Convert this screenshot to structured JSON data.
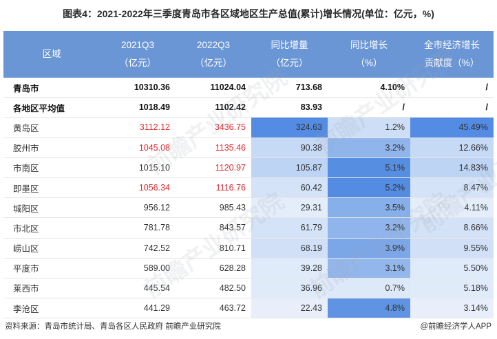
{
  "title": "图表4：2021-2022年三季度青岛市各区域地区生产总值(累计)增长情况(单位：亿元，%)",
  "chart_data": {
    "type": "table",
    "title": "图表4：2021-2022年三季度青岛市各区域地区生产总值(累计)增长情况(单位：亿元，%)",
    "headers": [
      {
        "l1": "区域",
        "l2": ""
      },
      {
        "l1": "2021Q3",
        "l2": "（亿元）"
      },
      {
        "l1": "2022Q3",
        "l2": "（亿元）"
      },
      {
        "l1": "同比增量",
        "l2": "（亿元）"
      },
      {
        "l1": "同比增长",
        "l2": "（%）"
      },
      {
        "l1": "全市经济增长",
        "l2": "贡献度（%）"
      }
    ],
    "rows": [
      {
        "region": "青岛市",
        "v2021": "10310.36",
        "v2022": "11024.04",
        "increase": "713.68",
        "growth": "4.10%",
        "contribution": "/",
        "bold": true
      },
      {
        "region": "各地区平均值",
        "v2021": "1018.49",
        "v2022": "1102.42",
        "increase": "83.93",
        "growth": "/",
        "contribution": "/",
        "bold": true
      },
      {
        "region": "黄岛区",
        "v2021": "3112.12",
        "v2022": "3436.75",
        "increase": "324.63",
        "growth": "1.2%",
        "contribution": "45.49%",
        "red2021": true,
        "red2022": true
      },
      {
        "region": "胶州市",
        "v2021": "1045.08",
        "v2022": "1135.46",
        "increase": "90.38",
        "growth": "3.2%",
        "contribution": "12.66%",
        "red2021": true,
        "red2022": true
      },
      {
        "region": "市南区",
        "v2021": "1015.10",
        "v2022": "1120.97",
        "increase": "105.87",
        "growth": "5.1%",
        "contribution": "14.83%",
        "red2021": false,
        "red2022": true
      },
      {
        "region": "即墨区",
        "v2021": "1056.34",
        "v2022": "1116.76",
        "increase": "60.42",
        "growth": "5.2%",
        "contribution": "8.47%",
        "red2021": true,
        "red2022": true
      },
      {
        "region": "城阳区",
        "v2021": "956.12",
        "v2022": "985.43",
        "increase": "29.31",
        "growth": "3.5%",
        "contribution": "4.11%"
      },
      {
        "region": "市北区",
        "v2021": "781.78",
        "v2022": "843.57",
        "increase": "61.79",
        "growth": "3.2%",
        "contribution": "8.66%"
      },
      {
        "region": "崂山区",
        "v2021": "742.52",
        "v2022": "810.71",
        "increase": "68.19",
        "growth": "3.9%",
        "contribution": "9.55%"
      },
      {
        "region": "平度市",
        "v2021": "589.00",
        "v2022": "628.28",
        "increase": "39.28",
        "growth": "3.1%",
        "contribution": "5.50%"
      },
      {
        "region": "莱西市",
        "v2021": "445.54",
        "v2022": "482.50",
        "increase": "36.96",
        "growth": "0.7%",
        "contribution": "5.18%"
      },
      {
        "region": "李沧区",
        "v2021": "441.29",
        "v2022": "463.72",
        "increase": "22.43",
        "growth": "4.8%",
        "contribution": "3.14%"
      }
    ],
    "heat_columns": [
      "increase",
      "growth",
      "contribution"
    ],
    "heat_color": "#4a86e0"
  },
  "watermarks": [
    "前瞻产业研究院",
    "前瞻产业研究院",
    "前瞻产业研究院",
    "前瞻产业研究院",
    "前瞻产业研究院"
  ],
  "footer": {
    "source": "资料来源：青岛市统计局、青岛各区人民政府 前瞻产业研究院",
    "brand": "@前瞻经济学人APP"
  }
}
